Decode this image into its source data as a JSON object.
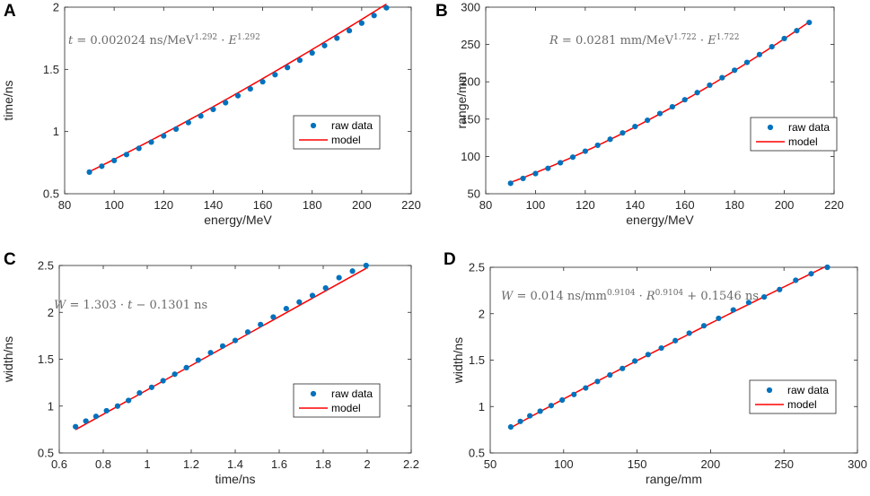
{
  "colors": {
    "points": "#0072BD",
    "model": "#ff0000",
    "axes": "#262626",
    "equation": "#6a6a6a"
  },
  "chart_data": [
    {
      "panel": "A",
      "type": "scatter",
      "xlabel": "energy/MeV",
      "ylabel": "time/ns",
      "xlim": [
        80,
        220
      ],
      "ylim": [
        0.5,
        2
      ],
      "xticks": [
        80,
        100,
        120,
        140,
        160,
        180,
        200,
        220
      ],
      "yticks": [
        0.5,
        1,
        1.5,
        2
      ],
      "xtick_labels": [
        "80",
        "100",
        "120",
        "140",
        "160",
        "180",
        "200",
        "220"
      ],
      "ytick_labels": [
        "0.5",
        "1",
        "1.5",
        "2"
      ],
      "equation": {
        "lhs": "t",
        "eq": " = 0.002024 ns/MeV",
        "exp1": "1.292",
        "mid": " · ",
        "var": "E",
        "exp2": "1.292"
      },
      "legend": {
        "position": "bottom-right",
        "entries": [
          "raw data",
          "model"
        ]
      },
      "model": {
        "kind": "power",
        "a": 0.002024,
        "b": 1.292,
        "c": 0
      },
      "series": [
        {
          "name": "raw data",
          "x": [
            90,
            95,
            100,
            105,
            110,
            115,
            120,
            125,
            130,
            135,
            140,
            145,
            150,
            155,
            160,
            165,
            170,
            175,
            180,
            185,
            190,
            195,
            200,
            205,
            210
          ],
          "y": [
            0.674,
            0.721,
            0.767,
            0.815,
            0.865,
            0.915,
            0.965,
            1.02,
            1.072,
            1.125,
            1.178,
            1.232,
            1.288,
            1.343,
            1.4,
            1.457,
            1.515,
            1.573,
            1.632,
            1.691,
            1.751,
            1.811,
            1.872,
            1.933,
            1.995
          ]
        }
      ]
    },
    {
      "panel": "B",
      "type": "scatter",
      "xlabel": "energy/MeV",
      "ylabel": "range/mm",
      "xlim": [
        80,
        220
      ],
      "ylim": [
        50,
        300
      ],
      "xticks": [
        80,
        100,
        120,
        140,
        160,
        180,
        200,
        220
      ],
      "yticks": [
        50,
        100,
        150,
        200,
        250,
        300
      ],
      "xtick_labels": [
        "80",
        "100",
        "120",
        "140",
        "160",
        "180",
        "200",
        "220"
      ],
      "ytick_labels": [
        "50",
        "100",
        "150",
        "200",
        "250",
        "300"
      ],
      "equation": {
        "lhs": "R",
        "eq": " = 0.0281 mm/MeV",
        "exp1": "1.722",
        "mid": " · ",
        "var": "E",
        "exp2": "1.722"
      },
      "legend": {
        "position": "right",
        "entries": [
          "raw data",
          "model"
        ]
      },
      "model": {
        "kind": "power",
        "a": 0.0281,
        "b": 1.722,
        "c": 0
      },
      "series": [
        {
          "name": "raw data",
          "x": [
            90,
            95,
            100,
            105,
            110,
            115,
            120,
            125,
            130,
            135,
            140,
            145,
            150,
            155,
            160,
            165,
            170,
            175,
            180,
            185,
            190,
            195,
            200,
            205,
            210
          ],
          "y": [
            64,
            70.5,
            77,
            84,
            91.5,
            99,
            107,
            115,
            123,
            131.5,
            140,
            148.5,
            157.5,
            166.5,
            176,
            185.5,
            195.5,
            205.5,
            215.5,
            226,
            236.5,
            247,
            258,
            268.5,
            279.5
          ]
        }
      ]
    },
    {
      "panel": "C",
      "type": "scatter",
      "xlabel": "time/ns",
      "ylabel": "width/ns",
      "xlim": [
        0.6,
        2.2
      ],
      "ylim": [
        0.5,
        2.5
      ],
      "xticks": [
        0.6,
        0.8,
        1,
        1.2,
        1.4,
        1.6,
        1.8,
        2,
        2.2
      ],
      "yticks": [
        0.5,
        1,
        1.5,
        2,
        2.5
      ],
      "xtick_labels": [
        "0.6",
        "0.8",
        "1",
        "1.2",
        "1.4",
        "1.6",
        "1.8",
        "2",
        "2.2"
      ],
      "ytick_labels": [
        "0.5",
        "1",
        "1.5",
        "2",
        "2.5"
      ],
      "equation": {
        "lhs": "W",
        "eq": " = 1.303 · ",
        "var": "t",
        "tail": " − 0.1301 ns"
      },
      "legend": {
        "position": "bottom-right",
        "entries": [
          "raw data",
          "model"
        ]
      },
      "model": {
        "kind": "linear",
        "a": 1.303,
        "b": -0.1301
      },
      "series": [
        {
          "name": "raw data",
          "x": [
            0.674,
            0.721,
            0.767,
            0.815,
            0.865,
            0.915,
            0.965,
            1.02,
            1.072,
            1.125,
            1.178,
            1.232,
            1.288,
            1.343,
            1.4,
            1.457,
            1.515,
            1.573,
            1.632,
            1.691,
            1.751,
            1.811,
            1.872,
            1.933,
            1.995
          ],
          "y": [
            0.78,
            0.84,
            0.89,
            0.95,
            1.0,
            1.06,
            1.14,
            1.2,
            1.27,
            1.34,
            1.41,
            1.49,
            1.57,
            1.64,
            1.7,
            1.79,
            1.87,
            1.95,
            2.04,
            2.11,
            2.18,
            2.26,
            2.37,
            2.44,
            2.5
          ]
        }
      ]
    },
    {
      "panel": "D",
      "type": "scatter",
      "xlabel": "range/mm",
      "ylabel": "width/ns",
      "xlim": [
        50,
        300
      ],
      "ylim": [
        0.5,
        2.5
      ],
      "xticks": [
        50,
        100,
        150,
        200,
        250,
        300
      ],
      "yticks": [
        0.5,
        1,
        1.5,
        2,
        2.5
      ],
      "xtick_labels": [
        "50",
        "100",
        "150",
        "200",
        "250",
        "300"
      ],
      "ytick_labels": [
        "0.5",
        "1",
        "1.5",
        "2",
        "2.5"
      ],
      "equation": {
        "lhs": "W",
        "eq": " = 0.014 ns/mm",
        "exp1": "0.9104",
        "mid": " · ",
        "var": "R",
        "exp2": "0.9104",
        "tail": " + 0.1546 ns"
      },
      "legend": {
        "position": "bottom-right",
        "entries": [
          "raw data",
          "model"
        ]
      },
      "model": {
        "kind": "power",
        "a": 0.014,
        "b": 0.9104,
        "c": 0.1546
      },
      "series": [
        {
          "name": "raw data",
          "x": [
            64,
            70.5,
            77,
            84,
            91.5,
            99,
            107,
            115,
            123,
            131.5,
            140,
            148.5,
            157.5,
            166.5,
            176,
            185.5,
            195.5,
            205.5,
            215.5,
            226,
            236.5,
            247,
            258,
            268.5,
            279.5
          ],
          "y": [
            0.78,
            0.84,
            0.9,
            0.95,
            1.01,
            1.07,
            1.13,
            1.2,
            1.27,
            1.34,
            1.41,
            1.49,
            1.56,
            1.63,
            1.71,
            1.79,
            1.87,
            1.95,
            2.04,
            2.12,
            2.18,
            2.26,
            2.36,
            2.43,
            2.5
          ]
        }
      ]
    }
  ]
}
